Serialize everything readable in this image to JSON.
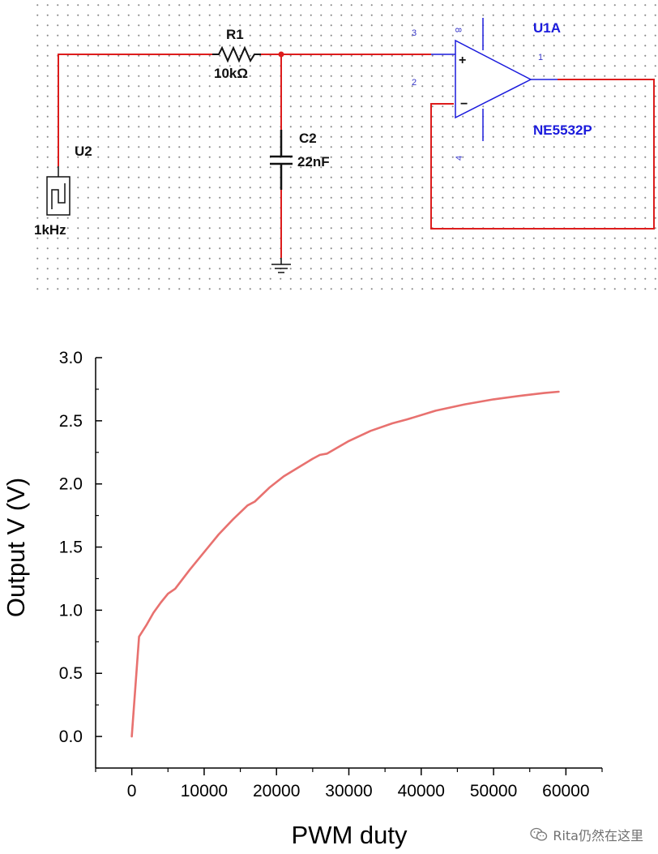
{
  "schematic": {
    "resistor": {
      "ref": "R1",
      "value": "10kΩ"
    },
    "capacitor": {
      "ref": "C2",
      "value": "22nF"
    },
    "source": {
      "ref": "U2",
      "value": "1kHz"
    },
    "opamp": {
      "ref": "U1A",
      "part": "NE5532P",
      "pins": {
        "noninv": "3",
        "inv": "2",
        "out": "1",
        "vpos": "8",
        "vneg": "4"
      }
    },
    "colors": {
      "wire": "#dd1c1c",
      "opamp": "#1a1adc",
      "component": "#111111"
    }
  },
  "chart_data": {
    "type": "line",
    "title": "",
    "xlabel": "PWM duty",
    "ylabel": "Output V (V)",
    "xlim": [
      -5000,
      65000
    ],
    "ylim": [
      -0.25,
      3.0
    ],
    "xticks": [
      0,
      10000,
      20000,
      30000,
      40000,
      50000,
      60000
    ],
    "yticks": [
      0.0,
      0.5,
      1.0,
      1.5,
      2.0,
      2.5,
      3.0
    ],
    "xtick_labels": [
      "0",
      "10000",
      "20000",
      "30000",
      "40000",
      "50000",
      "60000"
    ],
    "ytick_labels": [
      "0.0",
      "0.5",
      "1.0",
      "1.5",
      "2.0",
      "2.5",
      "3.0"
    ],
    "series": [
      {
        "color": "#e8716f",
        "x": [
          0,
          1000,
          2000,
          3000,
          4000,
          5000,
          6000,
          8000,
          10000,
          12000,
          14000,
          16000,
          17000,
          19000,
          21000,
          23000,
          25000,
          26000,
          27000,
          30000,
          33000,
          36000,
          38000,
          42000,
          46000,
          50000,
          54000,
          57000,
          59000
        ],
        "y": [
          0.0,
          0.79,
          0.88,
          0.98,
          1.06,
          1.13,
          1.17,
          1.32,
          1.46,
          1.6,
          1.72,
          1.83,
          1.86,
          1.97,
          2.06,
          2.13,
          2.2,
          2.23,
          2.24,
          2.34,
          2.42,
          2.48,
          2.51,
          2.58,
          2.63,
          2.67,
          2.7,
          2.72,
          2.73
        ]
      }
    ],
    "grid": false,
    "legend": "none"
  },
  "watermark": {
    "text": "Rita仍然在这里",
    "icon": "wechat-icon"
  }
}
